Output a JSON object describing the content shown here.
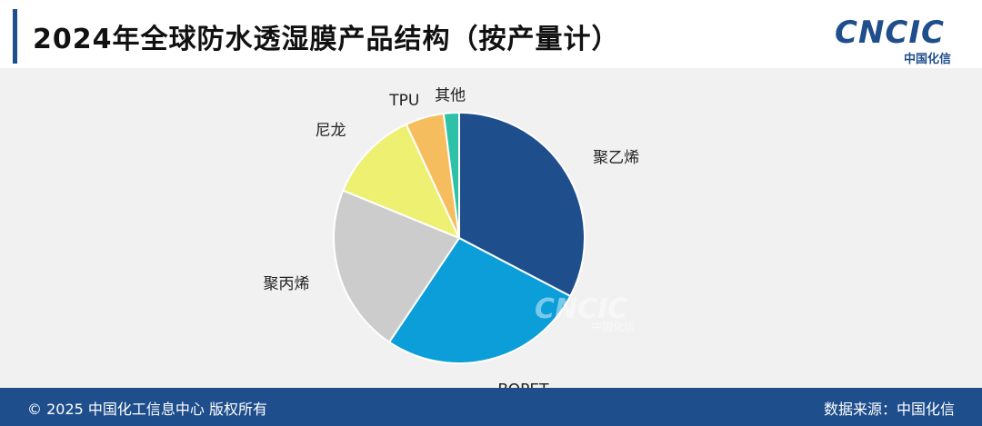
{
  "header": {
    "title": "2024年全球防水透湿膜产品结构（按产量计）",
    "logo_text": "CNCIC",
    "logo_sub": "中国化信"
  },
  "watermark": {
    "text": "CNCIC",
    "sub": "中国化信"
  },
  "footer": {
    "left": "© 2025 中国化工信息中心  版权所有",
    "right": "数据来源：中国化信"
  },
  "colors": {
    "header_accent": "#1f4e8c",
    "footer_bg": "#1f4e8c",
    "plot_bg": "#f1f1f1"
  },
  "chart_data": {
    "type": "pie",
    "title": "2024年全球防水透湿膜产品结构（按产量计）",
    "slices": [
      {
        "label": "聚乙烯",
        "value": 33,
        "color": "#1f4e8c"
      },
      {
        "label": "BOPET",
        "value": 27,
        "color": "#0b9ed9"
      },
      {
        "label": "聚丙烯",
        "value": 22,
        "color": "#cccccc"
      },
      {
        "label": "尼龙",
        "value": 12,
        "color": "#eef071"
      },
      {
        "label": "TPU",
        "value": 5,
        "color": "#f6bd5e"
      },
      {
        "label": "其他",
        "value": 2,
        "color": "#2dc2a8"
      }
    ],
    "start_angle": "12 o'clock, clockwise",
    "legend": "none (labels outside slices)"
  }
}
